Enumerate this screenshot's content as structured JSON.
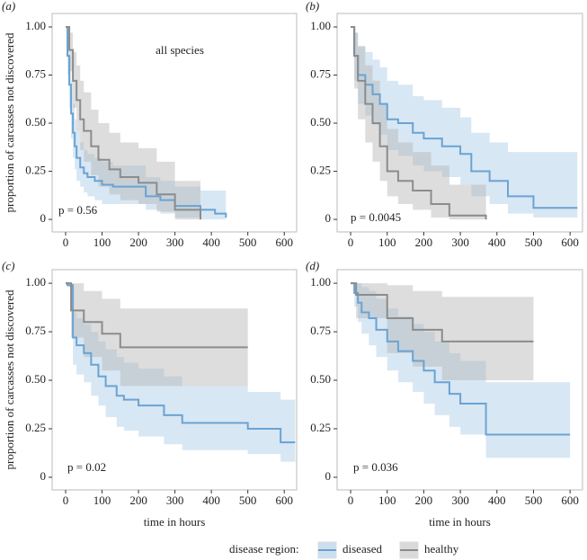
{
  "legend_title": "disease region:",
  "chart_data": [
    {
      "type": "survival",
      "panel_label": "(a)",
      "annotation": "all species",
      "stat": "p = 0.56",
      "ylabel": "proportion of carcasses not discovered",
      "xlim": [
        -37,
        634
      ],
      "ylim": [
        -0.065,
        1.07
      ],
      "xticks": [
        0,
        100,
        200,
        300,
        400,
        500,
        600
      ],
      "yticks": [
        0,
        0.25,
        {
          "value": 0.5,
          "label": "0.50"
        },
        0.75,
        {
          "value": 1,
          "label": "1.00"
        }
      ],
      "series": [
        {
          "name": "diseased",
          "color": "#6aa3d2",
          "band_color": "#a9c9e6",
          "x": [
            0,
            5,
            10,
            15,
            20,
            25,
            30,
            40,
            50,
            60,
            80,
            100,
            130,
            170,
            220,
            260,
            300,
            370,
            410,
            440
          ],
          "values": [
            1,
            0.85,
            0.7,
            0.55,
            0.45,
            0.38,
            0.32,
            0.27,
            0.24,
            0.22,
            0.2,
            0.18,
            0.17,
            0.17,
            0.12,
            0.1,
            0.07,
            0.05,
            0.03,
            0.01
          ],
          "upper": [
            1,
            0.95,
            0.85,
            0.72,
            0.6,
            0.52,
            0.46,
            0.4,
            0.36,
            0.34,
            0.32,
            0.3,
            0.28,
            0.28,
            0.22,
            0.2,
            0.17,
            0.15,
            0.15,
            0.12
          ],
          "lower": [
            1,
            0.75,
            0.58,
            0.42,
            0.32,
            0.26,
            0.2,
            0.17,
            0.14,
            0.12,
            0.1,
            0.08,
            0.08,
            0.08,
            0.05,
            0.03,
            0.01,
            0,
            0,
            0
          ]
        },
        {
          "name": "healthy",
          "color": "#8c8c8c",
          "band_color": "#b3b3b3",
          "x": [
            0,
            10,
            20,
            30,
            40,
            50,
            70,
            90,
            120,
            150,
            200,
            250,
            300,
            370
          ],
          "values": [
            1,
            0.88,
            0.72,
            0.62,
            0.52,
            0.46,
            0.38,
            0.31,
            0.26,
            0.22,
            0.19,
            0.13,
            0.05,
            0
          ],
          "upper": [
            1,
            0.97,
            0.87,
            0.8,
            0.72,
            0.66,
            0.57,
            0.5,
            0.45,
            0.4,
            0.37,
            0.3,
            0.2,
            0.1
          ],
          "lower": [
            1,
            0.77,
            0.58,
            0.46,
            0.36,
            0.3,
            0.23,
            0.17,
            0.13,
            0.1,
            0.08,
            0.04,
            0,
            0
          ]
        }
      ]
    },
    {
      "type": "survival",
      "panel_label": "(b)",
      "stat": "p = 0.0045",
      "xlim": [
        -37,
        634
      ],
      "ylim": [
        -0.065,
        1.07
      ],
      "xticks": [
        0,
        100,
        200,
        300,
        400,
        500,
        600
      ],
      "yticks": [
        0,
        0.25,
        {
          "value": 0.5,
          "label": "0.50"
        },
        0.75,
        {
          "value": 1,
          "label": "1.00"
        }
      ],
      "series": [
        {
          "name": "diseased",
          "color": "#6aa3d2",
          "band_color": "#a9c9e6",
          "x": [
            0,
            10,
            20,
            40,
            60,
            80,
            100,
            130,
            170,
            200,
            250,
            300,
            330,
            380,
            430,
            500,
            620
          ],
          "values": [
            1,
            0.85,
            0.75,
            0.7,
            0.65,
            0.6,
            0.52,
            0.5,
            0.45,
            0.42,
            0.38,
            0.34,
            0.25,
            0.2,
            0.12,
            0.06,
            0.06
          ],
          "upper": [
            1,
            0.97,
            0.9,
            0.87,
            0.83,
            0.79,
            0.72,
            0.7,
            0.64,
            0.62,
            0.58,
            0.53,
            0.45,
            0.4,
            0.35,
            0.35,
            0.35
          ],
          "lower": [
            1,
            0.72,
            0.6,
            0.54,
            0.49,
            0.44,
            0.36,
            0.33,
            0.28,
            0.25,
            0.22,
            0.18,
            0.12,
            0.08,
            0.03,
            0.01,
            0.01
          ]
        },
        {
          "name": "healthy",
          "color": "#8c8c8c",
          "band_color": "#b3b3b3",
          "x": [
            0,
            10,
            20,
            40,
            60,
            80,
            100,
            130,
            170,
            220,
            270,
            370
          ],
          "values": [
            1,
            0.85,
            0.72,
            0.6,
            0.5,
            0.38,
            0.25,
            0.2,
            0.15,
            0.08,
            0.02,
            0
          ],
          "upper": [
            1,
            0.97,
            0.9,
            0.8,
            0.72,
            0.6,
            0.47,
            0.4,
            0.35,
            0.28,
            0.18,
            0.18
          ],
          "lower": [
            1,
            0.68,
            0.52,
            0.4,
            0.3,
            0.2,
            0.12,
            0.08,
            0.05,
            0.01,
            0,
            0
          ]
        }
      ]
    },
    {
      "type": "survival",
      "panel_label": "(c)",
      "stat": "p = 0.02",
      "ylabel": "proportion of carcasses not discovered",
      "xlabel": "time in hours",
      "xlim": [
        -37,
        634
      ],
      "ylim": [
        -0.065,
        1.07
      ],
      "xticks": [
        0,
        100,
        200,
        300,
        400,
        500,
        600
      ],
      "yticks": [
        0,
        0.25,
        {
          "value": 0.5,
          "label": "0.50"
        },
        0.75,
        {
          "value": 1,
          "label": "1.00"
        }
      ],
      "series": [
        {
          "name": "diseased",
          "color": "#6aa3d2",
          "band_color": "#a9c9e6",
          "x": [
            0,
            5,
            20,
            30,
            50,
            70,
            90,
            110,
            140,
            160,
            200,
            270,
            320,
            500,
            590,
            630
          ],
          "values": [
            1,
            0.99,
            0.72,
            0.68,
            0.64,
            0.58,
            0.52,
            0.47,
            0.42,
            0.4,
            0.37,
            0.32,
            0.28,
            0.25,
            0.18,
            0.18
          ],
          "upper": [
            1,
            1,
            0.85,
            0.82,
            0.79,
            0.75,
            0.7,
            0.66,
            0.62,
            0.59,
            0.56,
            0.52,
            0.47,
            0.44,
            0.4,
            0.4
          ],
          "lower": [
            1,
            0.98,
            0.58,
            0.53,
            0.49,
            0.42,
            0.37,
            0.31,
            0.26,
            0.24,
            0.21,
            0.17,
            0.14,
            0.12,
            0.08,
            0.08
          ]
        },
        {
          "name": "healthy",
          "color": "#8c8c8c",
          "band_color": "#b3b3b3",
          "x": [
            0,
            15,
            50,
            100,
            150,
            500
          ],
          "values": [
            1,
            0.86,
            0.8,
            0.74,
            0.67,
            0.67
          ],
          "upper": [
            1,
            1,
            0.96,
            0.92,
            0.87,
            0.87
          ],
          "lower": [
            1,
            0.72,
            0.62,
            0.55,
            0.47,
            0.47
          ]
        }
      ]
    },
    {
      "type": "survival",
      "panel_label": "(d)",
      "stat": "p = 0.036",
      "xlabel": "time in hours",
      "xlim": [
        -37,
        634
      ],
      "ylim": [
        -0.065,
        1.07
      ],
      "xticks": [
        0,
        100,
        200,
        300,
        400,
        500,
        600
      ],
      "yticks": [
        0,
        0.25,
        {
          "value": 0.5,
          "label": "0.50"
        },
        0.75,
        {
          "value": 1,
          "label": "1.00"
        }
      ],
      "series": [
        {
          "name": "diseased",
          "color": "#6aa3d2",
          "band_color": "#a9c9e6",
          "x": [
            0,
            10,
            20,
            30,
            50,
            70,
            100,
            130,
            170,
            200,
            230,
            270,
            300,
            370,
            600
          ],
          "values": [
            1,
            0.95,
            0.9,
            0.85,
            0.82,
            0.76,
            0.7,
            0.65,
            0.6,
            0.55,
            0.49,
            0.43,
            0.38,
            0.22,
            0.22
          ],
          "upper": [
            1,
            1,
            1,
            0.98,
            0.96,
            0.92,
            0.87,
            0.83,
            0.79,
            0.75,
            0.7,
            0.64,
            0.6,
            0.49,
            0.49
          ],
          "lower": [
            1,
            0.88,
            0.8,
            0.74,
            0.68,
            0.62,
            0.55,
            0.49,
            0.44,
            0.38,
            0.32,
            0.26,
            0.22,
            0.1,
            0.1
          ]
        },
        {
          "name": "healthy",
          "color": "#8c8c8c",
          "band_color": "#b3b3b3",
          "x": [
            0,
            15,
            100,
            170,
            250,
            500
          ],
          "values": [
            1,
            0.94,
            0.82,
            0.76,
            0.7,
            0.7
          ],
          "upper": [
            1,
            1,
            0.99,
            0.96,
            0.93,
            0.93
          ],
          "lower": [
            1,
            0.82,
            0.64,
            0.57,
            0.5,
            0.5
          ]
        }
      ]
    }
  ]
}
